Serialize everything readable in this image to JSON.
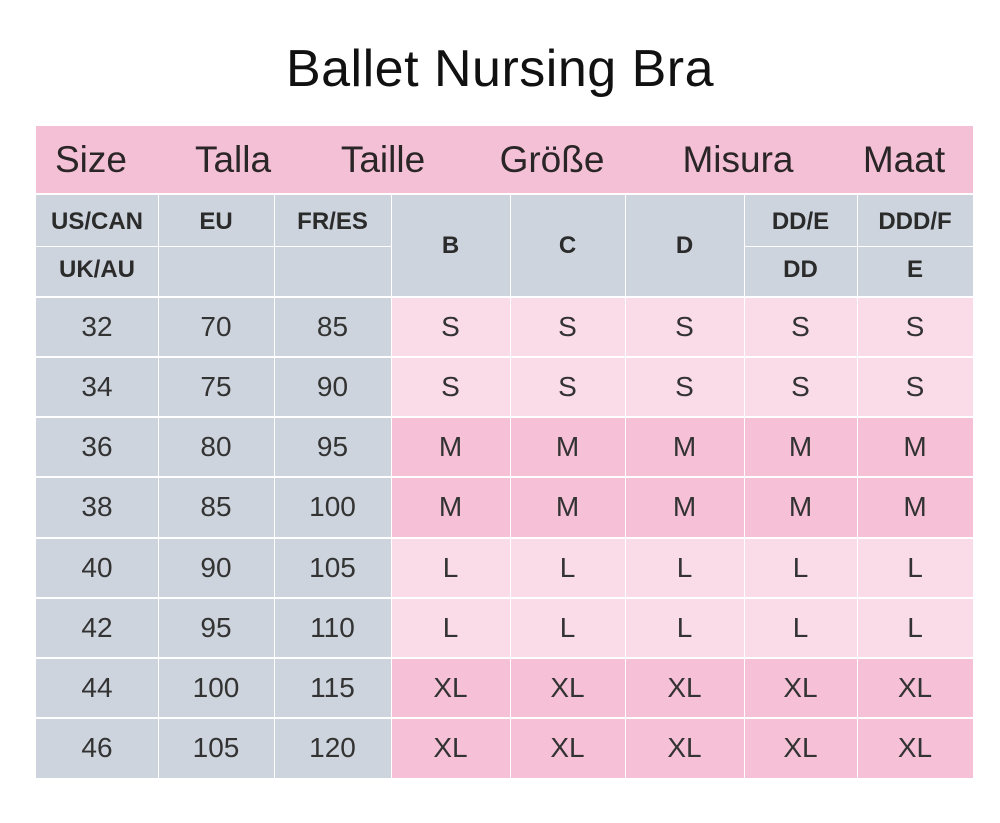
{
  "title": "Ballet Nursing Bra",
  "languages": [
    "Size",
    "Talla",
    "Taille",
    "Größe",
    "Misura",
    "Maat"
  ],
  "band_headers": {
    "us_can": "US/CAN",
    "uk_au": "UK/AU",
    "eu": "EU",
    "fr_es": "FR/ES"
  },
  "cup_headers": [
    {
      "top": "B",
      "bottom": ""
    },
    {
      "top": "C",
      "bottom": ""
    },
    {
      "top": "D",
      "bottom": ""
    },
    {
      "top": "DD/E",
      "bottom": "DD"
    },
    {
      "top": "DDD/F",
      "bottom": "E"
    }
  ],
  "rows": [
    {
      "us": "32",
      "eu": "70",
      "fr": "85",
      "cups": [
        "S",
        "S",
        "S",
        "S",
        "S"
      ],
      "shade": "light"
    },
    {
      "us": "34",
      "eu": "75",
      "fr": "90",
      "cups": [
        "S",
        "S",
        "S",
        "S",
        "S"
      ],
      "shade": "light"
    },
    {
      "us": "36",
      "eu": "80",
      "fr": "95",
      "cups": [
        "M",
        "M",
        "M",
        "M",
        "M"
      ],
      "shade": "dark"
    },
    {
      "us": "38",
      "eu": "85",
      "fr": "100",
      "cups": [
        "M",
        "M",
        "M",
        "M",
        "M"
      ],
      "shade": "dark"
    },
    {
      "us": "40",
      "eu": "90",
      "fr": "105",
      "cups": [
        "L",
        "L",
        "L",
        "L",
        "L"
      ],
      "shade": "light"
    },
    {
      "us": "42",
      "eu": "95",
      "fr": "110",
      "cups": [
        "L",
        "L",
        "L",
        "L",
        "L"
      ],
      "shade": "light"
    },
    {
      "us": "44",
      "eu": "100",
      "fr": "115",
      "cups": [
        "XL",
        "XL",
        "XL",
        "XL",
        "XL"
      ],
      "shade": "dark"
    },
    {
      "us": "46",
      "eu": "105",
      "fr": "120",
      "cups": [
        "XL",
        "XL",
        "XL",
        "XL",
        "XL"
      ],
      "shade": "dark"
    }
  ],
  "colors": {
    "header_pink": "#f4c0d5",
    "size_gray": "#cdd4dd",
    "light_pink": "#fadbe8",
    "dark_pink": "#f6c0d6"
  }
}
